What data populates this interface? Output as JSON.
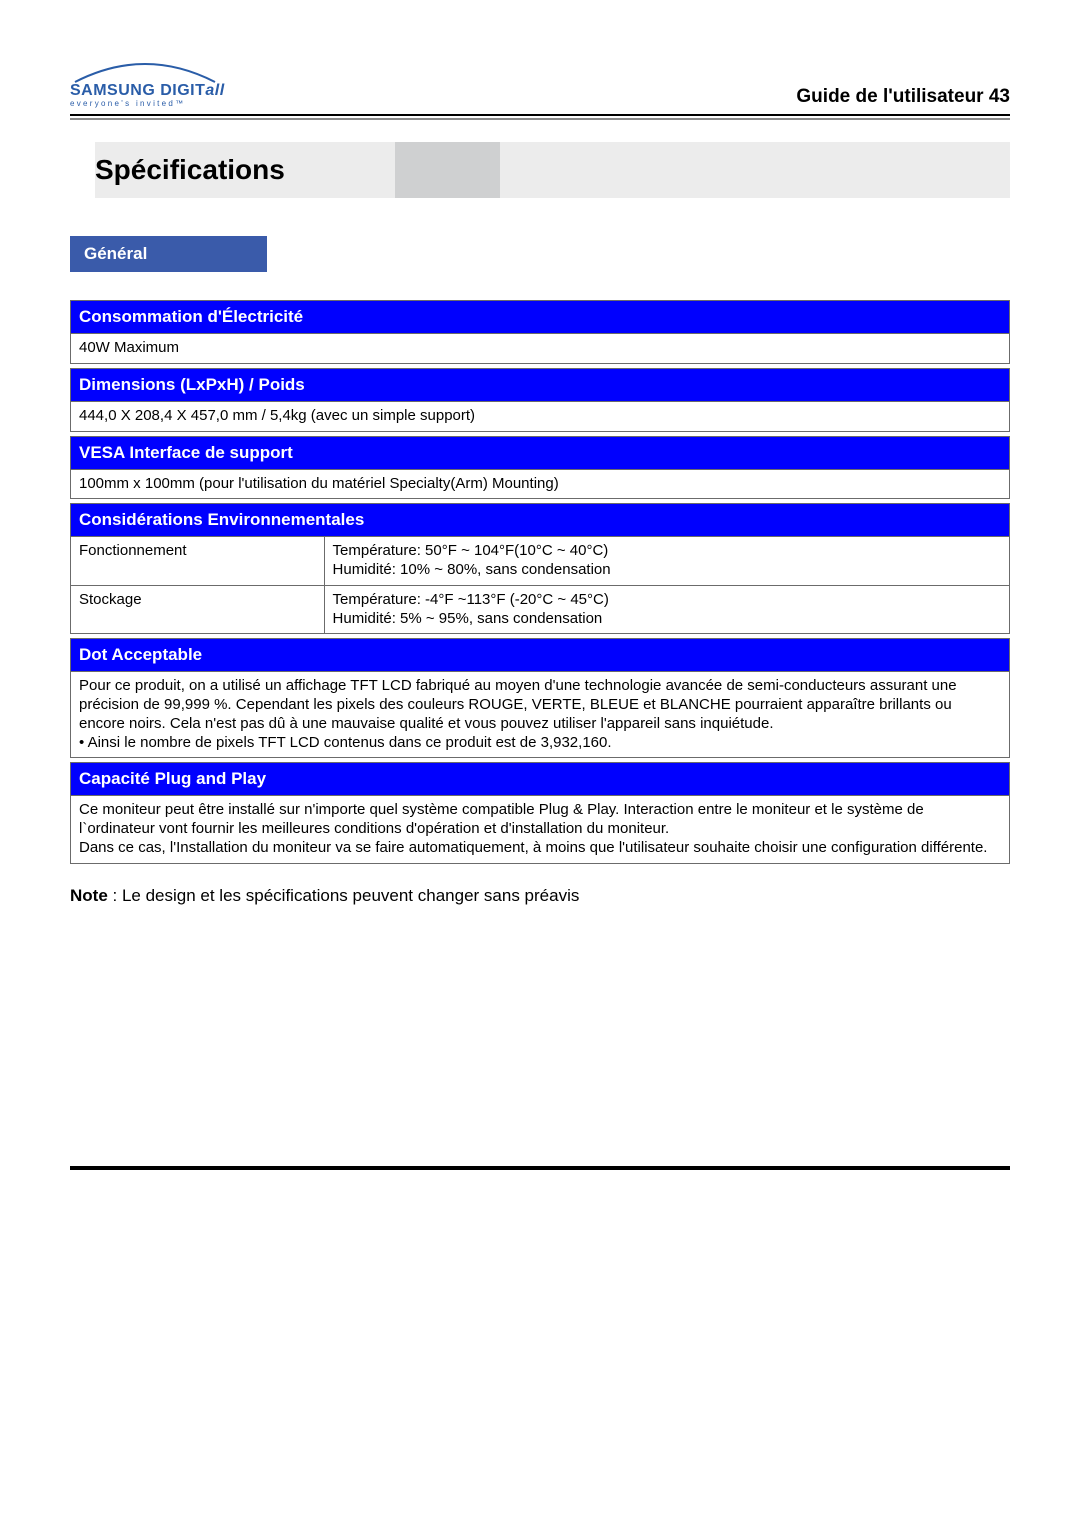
{
  "logo": {
    "brand_main": "SAMSUNG",
    "brand_suffix": "DIGIT",
    "brand_italic": "all",
    "tagline": "everyone's invited™",
    "arc_color": "#2a5da8",
    "text_color": "#2a5da8"
  },
  "header": {
    "guide_label": "Guide de l'utilisateur",
    "page_number": "43"
  },
  "title": "Spécifications",
  "tab_general": "Général",
  "colors": {
    "section_header_bg": "#0000fe",
    "section_header_fg": "#ffffff",
    "tab_bg": "#3a5baa",
    "title_bg": "#ececec",
    "title_bg2": "#cfd0d1",
    "rule_thick": "#000000",
    "rule_thin": "#8a8a8a",
    "cell_border": "#6b6b6b"
  },
  "sections": {
    "power": {
      "header": "Consommation d'Électricité",
      "value": "40W Maximum"
    },
    "dimensions": {
      "header": "Dimensions (LxPxH) / Poids",
      "value": "444,0 X 208,4 X 457,0 mm / 5,4kg (avec un simple support)"
    },
    "vesa": {
      "header": "VESA Interface de support",
      "value": "100mm x 100mm (pour l'utilisation du matériel Specialty(Arm) Mounting)"
    },
    "env": {
      "header": "Considérations Environnementales",
      "rows": [
        {
          "label": "Fonctionnement",
          "value": "Température: 50°F ~ 104°F(10°C ~ 40°C)\nHumidité: 10% ~ 80%, sans condensation"
        },
        {
          "label": "Stockage",
          "value": "Température: -4°F ~113°F (-20°C ~ 45°C)\nHumidité: 5% ~ 95%, sans condensation"
        }
      ]
    },
    "dot": {
      "header": "Dot Acceptable",
      "value": "Pour ce produit, on a utilisé un affichage TFT LCD fabriqué au moyen d'une technologie avancée de semi-conducteurs assurant une précision de 99,999 %. Cependant les pixels des couleurs ROUGE, VERTE, BLEUE et BLANCHE pourraient apparaître brillants ou encore noirs. Cela n'est pas dû à une mauvaise qualité et vous pouvez utiliser l'appareil sans inquiétude.\n• Ainsi le nombre de pixels TFT LCD contenus dans ce produit est de 3,932,160."
    },
    "pnp": {
      "header": "Capacité Plug and Play",
      "value": "Ce moniteur peut être installé sur n'importe quel système compatible Plug & Play. Interaction entre le moniteur et le système de l`ordinateur vont fournir les meilleures conditions d'opération et d'installation du moniteur.\nDans ce cas, l'Installation du moniteur va se faire automatiquement, à moins que l'utilisateur souhaite choisir une configuration différente."
    }
  },
  "note": {
    "label": "Note",
    "text": " : Le design et les spécifications peuvent changer sans préavis"
  }
}
